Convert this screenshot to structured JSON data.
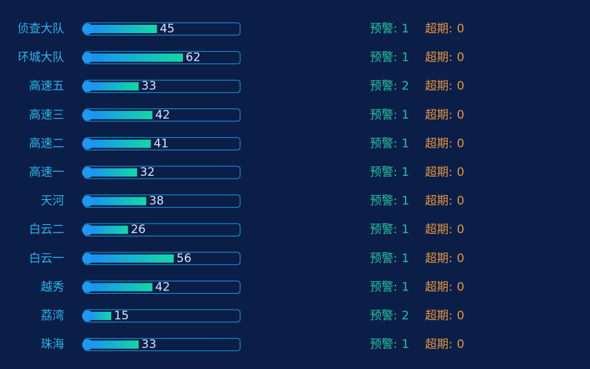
{
  "chart_data": {
    "type": "bar",
    "categories": [
      "侦查大队",
      "环城大队",
      "高速五",
      "高速三",
      "高速二",
      "高速一",
      "天河",
      "白云二",
      "白云一",
      "越秀",
      "荔湾",
      "珠海"
    ],
    "values": [
      45,
      62,
      33,
      42,
      41,
      32,
      38,
      26,
      56,
      42,
      15,
      33
    ],
    "xlim": [
      0,
      100
    ],
    "warning_label": "预警:",
    "warnings": [
      1,
      1,
      2,
      1,
      1,
      1,
      1,
      1,
      1,
      1,
      2,
      1
    ],
    "overdue_label": "超期:",
    "overdue": [
      0,
      0,
      0,
      0,
      0,
      0,
      0,
      0,
      0,
      0,
      0,
      0
    ]
  }
}
